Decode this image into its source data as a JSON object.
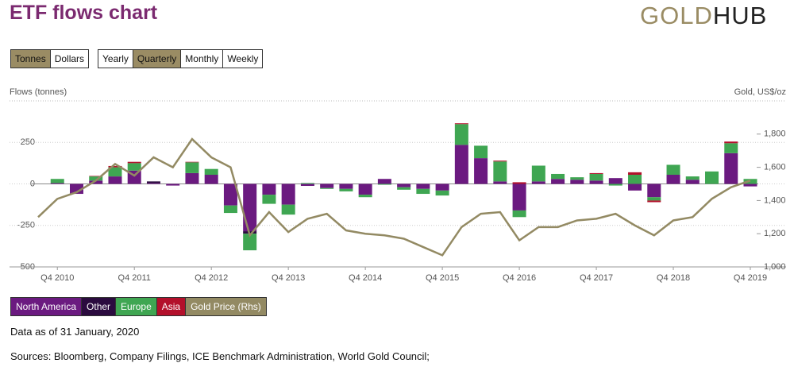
{
  "header": {
    "title": "ETF flows chart",
    "logo": {
      "left": "GOLD",
      "right": "HUB"
    }
  },
  "controls": {
    "units": [
      "Tonnes",
      "Dollars"
    ],
    "active_unit": "Tonnes",
    "periods": [
      "Yearly",
      "Quarterly",
      "Monthly",
      "Weekly"
    ],
    "active_period": "Quarterly"
  },
  "chart_data": {
    "type": "bar",
    "stacked": true,
    "ylabel": "Flows (tonnes)",
    "y2label": "Gold, US$/oz",
    "categories": [
      null,
      "Q4 2010",
      null,
      null,
      null,
      "Q4 2011",
      null,
      null,
      null,
      "Q4 2012",
      null,
      null,
      null,
      "Q4 2013",
      null,
      null,
      null,
      "Q4 2014",
      null,
      null,
      null,
      "Q4 2015",
      null,
      null,
      null,
      "Q4 2016",
      null,
      null,
      null,
      "Q4 2017",
      null,
      null,
      null,
      "Q4 2018",
      null,
      null,
      null,
      "Q4 2019"
    ],
    "series": [
      {
        "name": "North America",
        "color": "#6b1a80",
        "values": [
          0,
          5,
          -60,
          20,
          45,
          80,
          5,
          -10,
          65,
          55,
          -130,
          -285,
          -65,
          -125,
          -12,
          -25,
          -30,
          -65,
          30,
          -20,
          -30,
          -40,
          235,
          155,
          15,
          -160,
          15,
          30,
          25,
          20,
          35,
          -40,
          -80,
          55,
          25,
          0,
          185,
          -15
        ]
      },
      {
        "name": "Other",
        "color": "#2b0b3f",
        "values": [
          0,
          0,
          0,
          0,
          0,
          0,
          10,
          0,
          0,
          0,
          0,
          -15,
          0,
          0,
          0,
          0,
          0,
          0,
          0,
          0,
          0,
          0,
          0,
          0,
          0,
          0,
          0,
          0,
          0,
          0,
          0,
          0,
          0,
          0,
          0,
          0,
          0,
          0
        ]
      },
      {
        "name": "Europe",
        "color": "#3fa652",
        "values": [
          0,
          25,
          0,
          25,
          55,
          45,
          0,
          0,
          65,
          35,
          -45,
          -100,
          -55,
          -60,
          5,
          -5,
          -15,
          -15,
          -5,
          -15,
          -30,
          -30,
          125,
          75,
          120,
          -40,
          95,
          30,
          15,
          40,
          -10,
          55,
          -20,
          60,
          20,
          75,
          60,
          30
        ]
      },
      {
        "name": "Asia",
        "color": "#b3102b",
        "values": [
          0,
          0,
          0,
          3,
          8,
          8,
          0,
          0,
          3,
          0,
          0,
          0,
          0,
          0,
          0,
          0,
          0,
          0,
          0,
          0,
          0,
          0,
          5,
          0,
          5,
          10,
          0,
          0,
          0,
          5,
          0,
          15,
          -10,
          0,
          0,
          0,
          10,
          0
        ]
      },
      {
        "name": "Gold Price (Rhs)",
        "type": "line",
        "axis": "y2",
        "color": "#938a63",
        "values": [
          1300,
          1410,
          1450,
          1520,
          1620,
          1550,
          1660,
          1600,
          1770,
          1660,
          1600,
          1190,
          1330,
          1210,
          1290,
          1320,
          1220,
          1200,
          1190,
          1170,
          1120,
          1070,
          1240,
          1320,
          1330,
          1160,
          1240,
          1240,
          1280,
          1290,
          1320,
          1250,
          1190,
          1280,
          1300,
          1410,
          1480,
          1520
        ]
      }
    ],
    "ylim": [
      -500,
      500
    ],
    "yticks": [
      -500,
      -250,
      0,
      250
    ],
    "y2lim": [
      1000,
      2000
    ],
    "y2ticks": [
      {
        "value": 1000,
        "label": "1,000"
      },
      {
        "value": 1200,
        "label": "1,200"
      },
      {
        "value": 1400,
        "label": "1,400"
      },
      {
        "value": 1600,
        "label": "1,600"
      },
      {
        "value": 1800,
        "label": "1,800"
      }
    ],
    "grid": true
  },
  "notes": [
    "Data as of 31 January, 2020",
    "Sources: Bloomberg, Company Filings, ICE Benchmark Administration, World Gold Council;"
  ]
}
